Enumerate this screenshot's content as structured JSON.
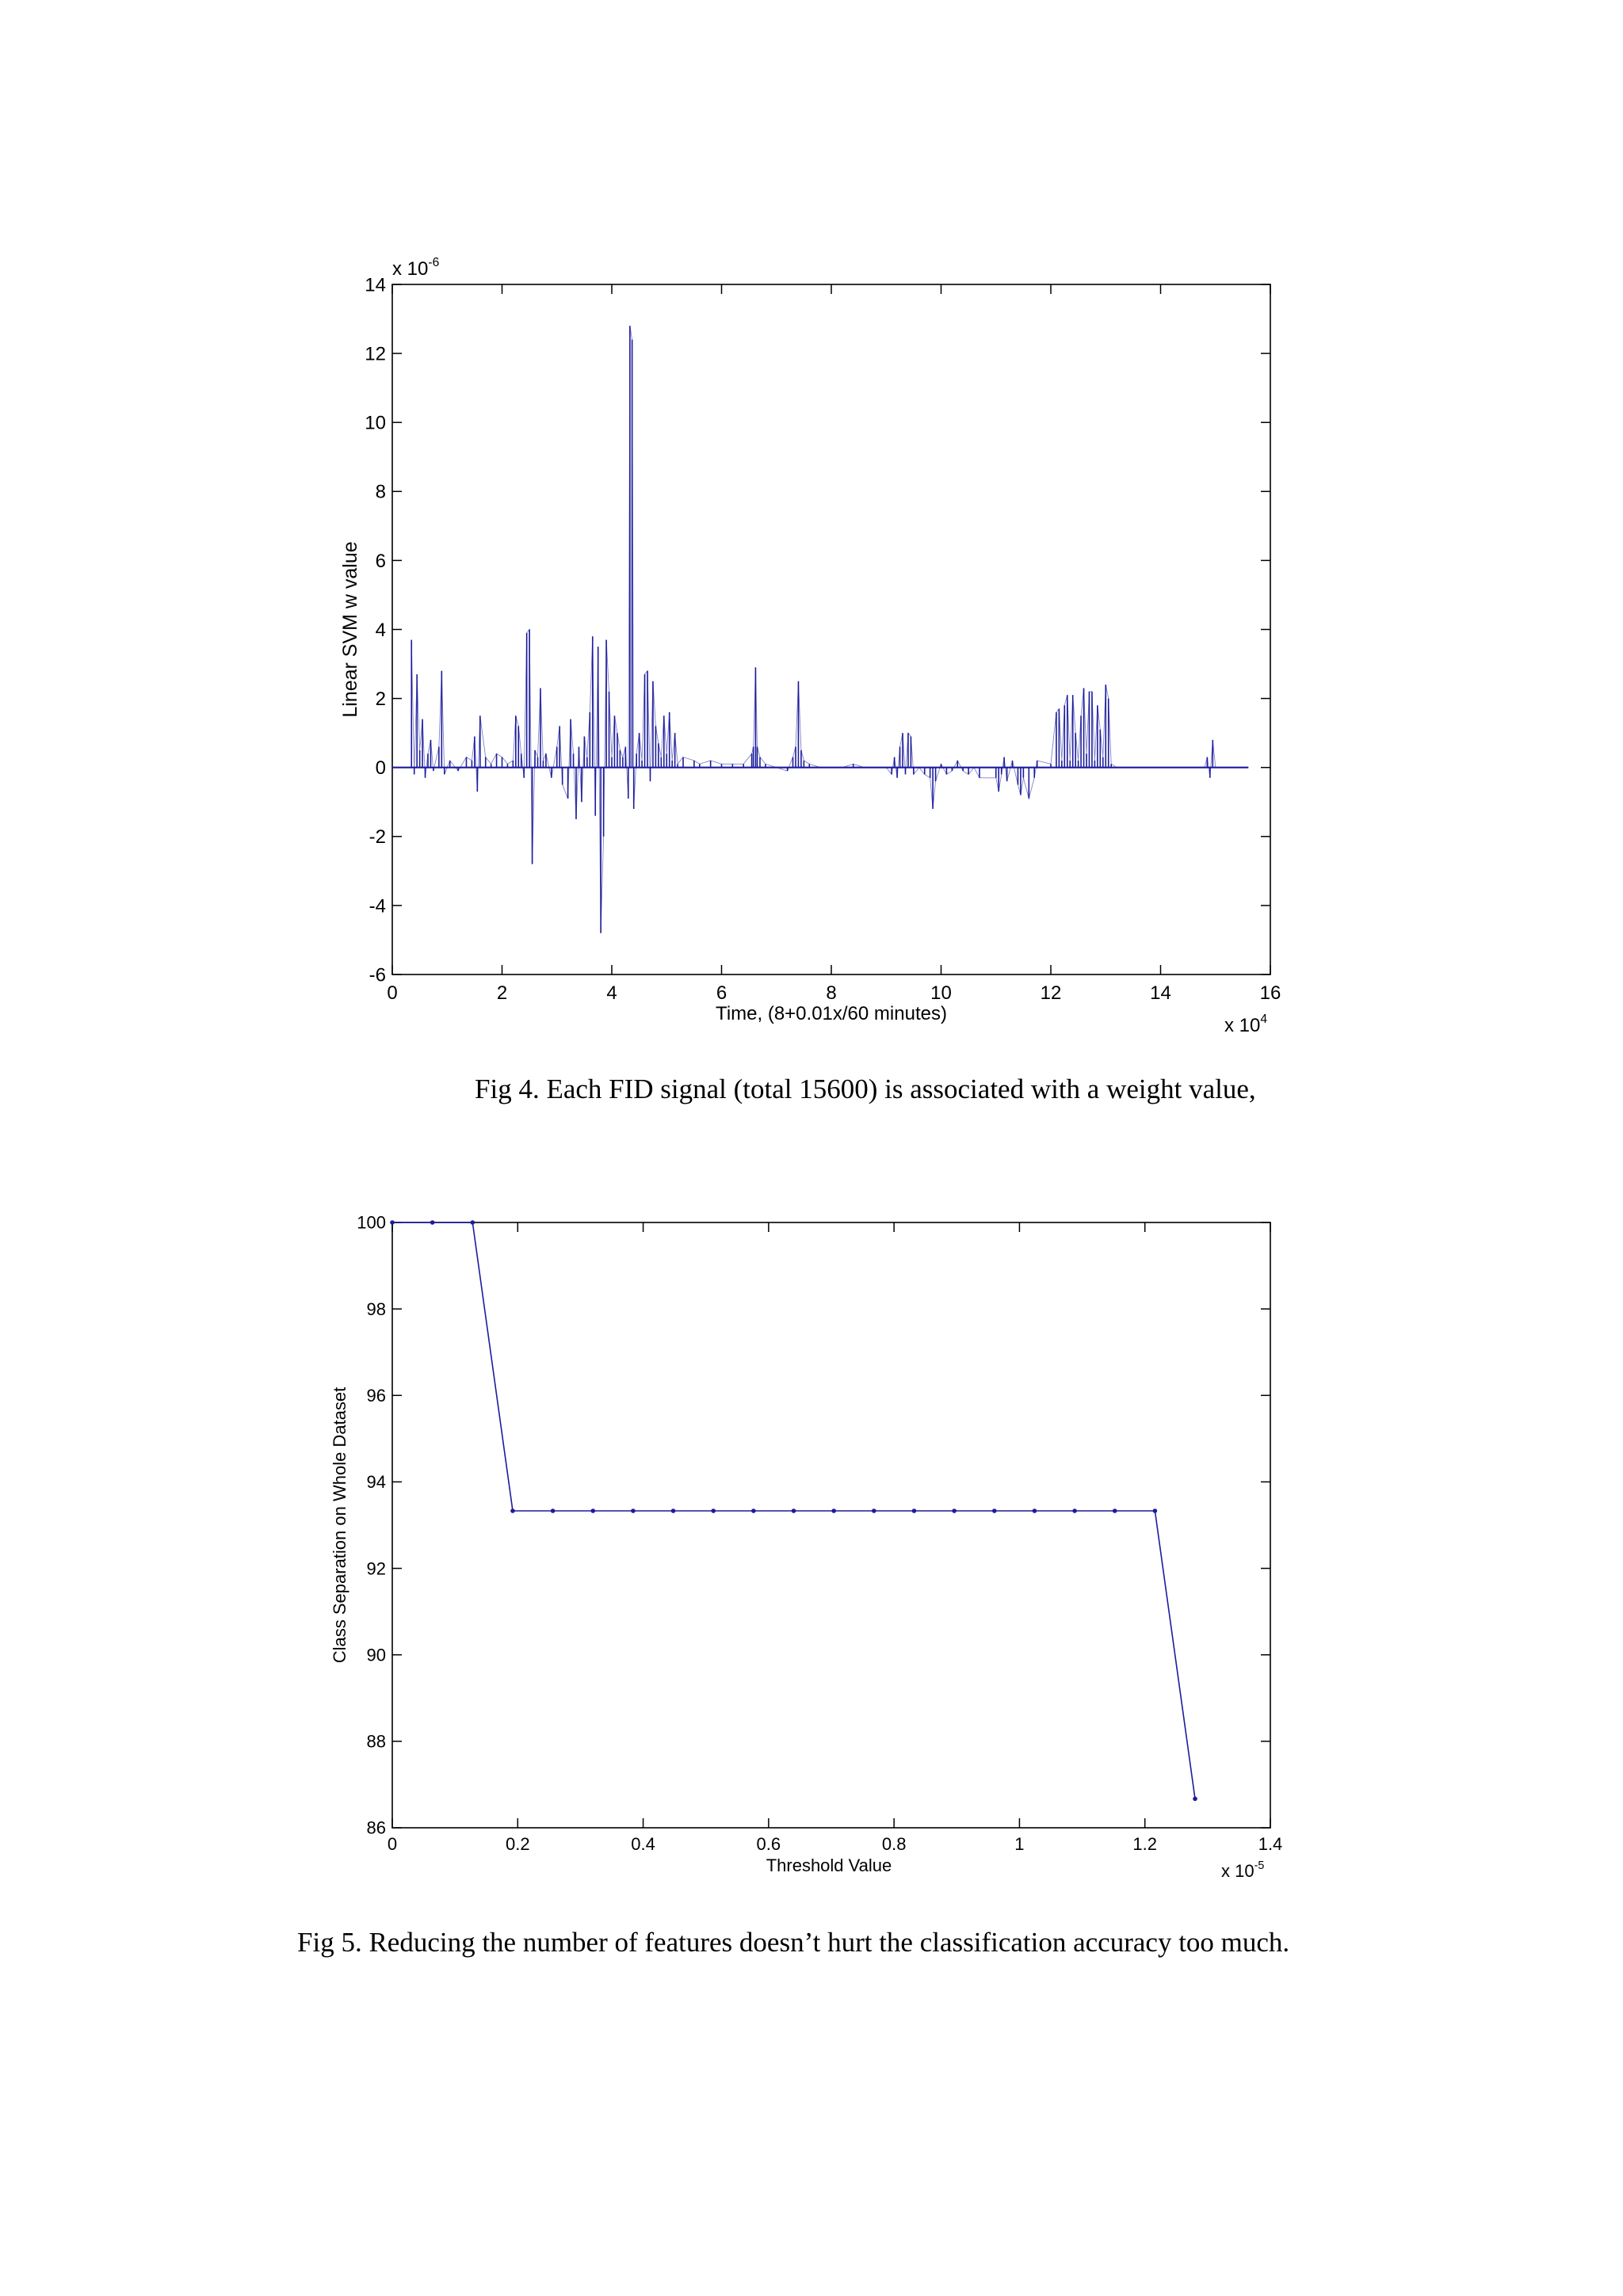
{
  "captions": {
    "fig4": "Fig 4. Each FID signal (total 15600) is associated with a weight value,",
    "fig5": "Fig 5. Reducing the number of features doesn’t hurt the classification accuracy too much."
  },
  "colors": {
    "series": "#1c1c9c",
    "axis": "#000000",
    "background": "#ffffff"
  },
  "chart_data": [
    {
      "type": "line",
      "ylabel": "Linear SVM w value",
      "xlabel": "Time, (8+0.01x/60 minutes)",
      "x_multiplier": {
        "base": "x 10",
        "exp": "4"
      },
      "y_multiplier": {
        "base": "x 10",
        "exp": "-6"
      },
      "xlim": [
        0,
        16
      ],
      "ylim": [
        -6,
        14
      ],
      "xticks": [
        0,
        2,
        4,
        6,
        8,
        10,
        12,
        14,
        16
      ],
      "yticks": [
        -6,
        -4,
        -2,
        0,
        2,
        4,
        6,
        8,
        10,
        12,
        14
      ],
      "grid": false,
      "legend": "none",
      "x_range_data": [
        0,
        15.6
      ],
      "series": [
        {
          "values": [
            [
              0.35,
              3.7
            ],
            [
              0.4,
              -0.2
            ],
            [
              0.45,
              2.7
            ],
            [
              0.5,
              0.5
            ],
            [
              0.55,
              1.4
            ],
            [
              0.6,
              -0.3
            ],
            [
              0.65,
              0.4
            ],
            [
              0.7,
              0.8
            ],
            [
              0.75,
              -0.1
            ],
            [
              0.85,
              0.6
            ],
            [
              0.9,
              2.8
            ],
            [
              0.95,
              -0.2
            ],
            [
              1.05,
              0.2
            ],
            [
              1.2,
              -0.1
            ],
            [
              1.35,
              0.3
            ],
            [
              1.45,
              0.2
            ],
            [
              1.5,
              0.9
            ],
            [
              1.55,
              -0.7
            ],
            [
              1.6,
              1.5
            ],
            [
              1.7,
              0.3
            ],
            [
              1.8,
              0.1
            ],
            [
              1.9,
              0.4
            ],
            [
              2.0,
              0.3
            ],
            [
              2.1,
              0.1
            ],
            [
              2.2,
              0.2
            ],
            [
              2.25,
              1.5
            ],
            [
              2.3,
              1.2
            ],
            [
              2.35,
              0.4
            ],
            [
              2.4,
              -0.3
            ],
            [
              2.45,
              3.9
            ],
            [
              2.5,
              4.0
            ],
            [
              2.55,
              -2.8
            ],
            [
              2.6,
              0.5
            ],
            [
              2.65,
              0.3
            ],
            [
              2.7,
              2.3
            ],
            [
              2.75,
              0.2
            ],
            [
              2.8,
              0.4
            ],
            [
              2.9,
              -0.3
            ],
            [
              3.0,
              0.6
            ],
            [
              3.05,
              1.2
            ],
            [
              3.1,
              -0.5
            ],
            [
              3.2,
              -0.9
            ],
            [
              3.25,
              1.4
            ],
            [
              3.3,
              0.4
            ],
            [
              3.35,
              -1.5
            ],
            [
              3.4,
              0.6
            ],
            [
              3.45,
              -1.0
            ],
            [
              3.5,
              0.9
            ],
            [
              3.55,
              0.3
            ],
            [
              3.6,
              1.6
            ],
            [
              3.65,
              3.8
            ],
            [
              3.7,
              -1.4
            ],
            [
              3.75,
              3.5
            ],
            [
              3.8,
              -4.8
            ],
            [
              3.85,
              -2.0
            ],
            [
              3.9,
              3.7
            ],
            [
              3.95,
              2.2
            ],
            [
              4.0,
              0.3
            ],
            [
              4.05,
              1.5
            ],
            [
              4.1,
              1.0
            ],
            [
              4.15,
              0.5
            ],
            [
              4.2,
              0.3
            ],
            [
              4.25,
              0.6
            ],
            [
              4.3,
              -0.9
            ],
            [
              4.33,
              12.8
            ],
            [
              4.37,
              12.4
            ],
            [
              4.4,
              -1.2
            ],
            [
              4.45,
              0.4
            ],
            [
              4.5,
              1.0
            ],
            [
              4.55,
              0.2
            ],
            [
              4.6,
              2.7
            ],
            [
              4.65,
              2.8
            ],
            [
              4.7,
              -0.4
            ],
            [
              4.75,
              2.5
            ],
            [
              4.8,
              1.2
            ],
            [
              4.85,
              0.7
            ],
            [
              4.9,
              0.3
            ],
            [
              4.95,
              1.5
            ],
            [
              5.0,
              0.4
            ],
            [
              5.05,
              1.6
            ],
            [
              5.1,
              0.2
            ],
            [
              5.15,
              1.0
            ],
            [
              5.2,
              0.1
            ],
            [
              5.3,
              0.3
            ],
            [
              5.5,
              0.2
            ],
            [
              5.6,
              0.1
            ],
            [
              5.8,
              0.2
            ],
            [
              6.0,
              0.1
            ],
            [
              6.2,
              0.1
            ],
            [
              6.4,
              0.1
            ],
            [
              6.55,
              0.4
            ],
            [
              6.58,
              0.6
            ],
            [
              6.62,
              2.9
            ],
            [
              6.65,
              0.6
            ],
            [
              6.7,
              0.3
            ],
            [
              6.8,
              0.1
            ],
            [
              7.0,
              0.0
            ],
            [
              7.2,
              -0.1
            ],
            [
              7.3,
              0.3
            ],
            [
              7.35,
              0.6
            ],
            [
              7.4,
              2.5
            ],
            [
              7.45,
              0.5
            ],
            [
              7.5,
              0.2
            ],
            [
              7.6,
              0.1
            ],
            [
              7.8,
              0.0
            ],
            [
              8.0,
              0.0
            ],
            [
              8.2,
              0.0
            ],
            [
              8.4,
              0.1
            ],
            [
              8.6,
              0.0
            ],
            [
              8.8,
              0.0
            ],
            [
              9.0,
              0.0
            ],
            [
              9.1,
              -0.2
            ],
            [
              9.15,
              0.3
            ],
            [
              9.2,
              -0.3
            ],
            [
              9.25,
              0.6
            ],
            [
              9.3,
              1.0
            ],
            [
              9.35,
              -0.2
            ],
            [
              9.4,
              1.0
            ],
            [
              9.45,
              0.9
            ],
            [
              9.5,
              -0.2
            ],
            [
              9.6,
              0.0
            ],
            [
              9.7,
              -0.2
            ],
            [
              9.8,
              -0.3
            ],
            [
              9.85,
              -1.2
            ],
            [
              9.9,
              -0.4
            ],
            [
              10.0,
              0.1
            ],
            [
              10.1,
              -0.2
            ],
            [
              10.2,
              -0.1
            ],
            [
              10.3,
              0.2
            ],
            [
              10.4,
              -0.1
            ],
            [
              10.5,
              -0.2
            ],
            [
              10.6,
              0.0
            ],
            [
              10.7,
              -0.3
            ],
            [
              11.0,
              -0.3
            ],
            [
              11.05,
              -0.7
            ],
            [
              11.1,
              -0.2
            ],
            [
              11.15,
              0.3
            ],
            [
              11.2,
              -0.4
            ],
            [
              11.3,
              0.2
            ],
            [
              11.4,
              -0.5
            ],
            [
              11.45,
              -0.8
            ],
            [
              11.5,
              -0.3
            ],
            [
              11.6,
              -0.9
            ],
            [
              11.7,
              -0.3
            ],
            [
              11.75,
              0.2
            ],
            [
              12.0,
              0.1
            ],
            [
              12.1,
              1.6
            ],
            [
              12.15,
              1.7
            ],
            [
              12.2,
              0.2
            ],
            [
              12.25,
              1.8
            ],
            [
              12.3,
              2.1
            ],
            [
              12.35,
              0.2
            ],
            [
              12.4,
              2.1
            ],
            [
              12.45,
              1.0
            ],
            [
              12.5,
              0.2
            ],
            [
              12.55,
              1.5
            ],
            [
              12.6,
              2.3
            ],
            [
              12.65,
              0.4
            ],
            [
              12.7,
              2.2
            ],
            [
              12.75,
              2.2
            ],
            [
              12.8,
              0.2
            ],
            [
              12.85,
              1.8
            ],
            [
              12.9,
              1.1
            ],
            [
              12.95,
              0.3
            ],
            [
              13.0,
              2.4
            ],
            [
              13.05,
              2.0
            ],
            [
              13.1,
              0.1
            ],
            [
              13.2,
              0.0
            ],
            [
              13.4,
              0.0
            ],
            [
              13.6,
              0.0
            ],
            [
              13.8,
              0.0
            ],
            [
              14.0,
              0.0
            ],
            [
              14.2,
              0.0
            ],
            [
              14.4,
              0.0
            ],
            [
              14.6,
              0.0
            ],
            [
              14.8,
              0.0
            ],
            [
              14.85,
              0.3
            ],
            [
              14.9,
              -0.3
            ],
            [
              14.95,
              0.8
            ],
            [
              15.0,
              0.0
            ],
            [
              15.2,
              0.0
            ],
            [
              15.4,
              0.0
            ],
            [
              15.6,
              0.0
            ]
          ]
        }
      ]
    },
    {
      "type": "line",
      "ylabel": "Class Separation on Whole Dataset",
      "xlabel": "Threshold Value",
      "x_multiplier": {
        "base": "x 10",
        "exp": "-5"
      },
      "xlim": [
        0,
        1.4
      ],
      "ylim": [
        86,
        100
      ],
      "xticks": [
        0,
        0.2,
        0.4,
        0.6,
        0.8,
        1,
        1.2,
        1.4
      ],
      "yticks": [
        86,
        88,
        90,
        92,
        94,
        96,
        98,
        100
      ],
      "grid": false,
      "legend": "none",
      "series": [
        {
          "x": [
            0,
            0.064,
            0.128,
            0.192,
            0.256,
            0.32,
            0.384,
            0.448,
            0.512,
            0.576,
            0.64,
            0.704,
            0.768,
            0.832,
            0.896,
            0.96,
            1.024,
            1.088,
            1.152,
            1.216,
            1.28
          ],
          "y": [
            100,
            100,
            100,
            93.33,
            93.33,
            93.33,
            93.33,
            93.33,
            93.33,
            93.33,
            93.33,
            93.33,
            93.33,
            93.33,
            93.33,
            93.33,
            93.33,
            93.33,
            93.33,
            93.33,
            86.67
          ]
        }
      ]
    }
  ]
}
